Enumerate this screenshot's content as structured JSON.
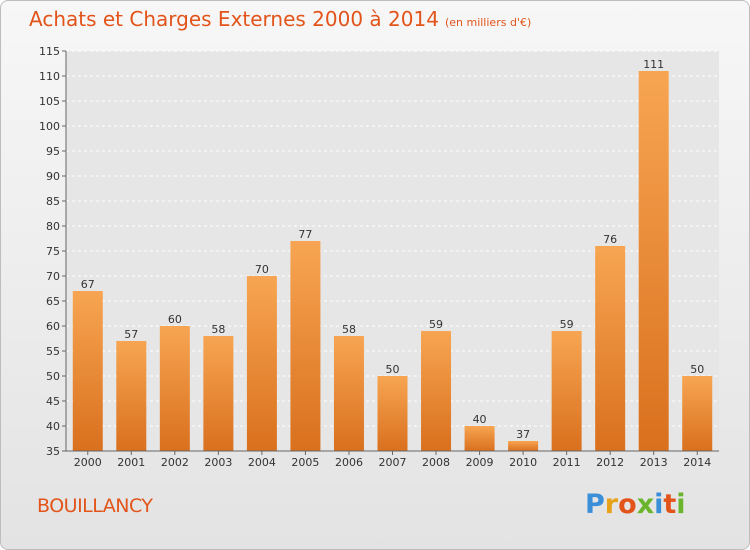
{
  "header": {
    "title": "Achats et Charges Externes 2000 à 2014",
    "subtitle": "(en milliers d'€)"
  },
  "footer": {
    "commune": "BOUILLANCY",
    "logo_letters": [
      "P",
      "r",
      "o",
      "x",
      "i",
      "t",
      "i"
    ],
    "logo_colors": [
      "#3a8fd8",
      "#e8a21a",
      "#e2541a",
      "#6bb52c",
      "#3a8fd8",
      "#e2541a",
      "#6bb52c"
    ]
  },
  "chart_data": {
    "type": "bar",
    "categories": [
      "2000",
      "2001",
      "2002",
      "2003",
      "2004",
      "2005",
      "2006",
      "2007",
      "2008",
      "2009",
      "2010",
      "2011",
      "2012",
      "2013",
      "2014"
    ],
    "values": [
      67,
      57,
      60,
      58,
      70,
      77,
      58,
      50,
      59,
      40,
      37,
      59,
      76,
      111,
      50
    ],
    "title": "Achats et Charges Externes 2000 à 2014",
    "xlabel": "",
    "ylabel": "",
    "ylim": [
      35,
      115
    ],
    "yticks": [
      35,
      40,
      45,
      50,
      55,
      60,
      65,
      70,
      75,
      80,
      85,
      90,
      95,
      100,
      105,
      110,
      115
    ],
    "grid": true,
    "bar_color_top": "#f7a552",
    "bar_color_bottom": "#d9701e",
    "plot_background": "#e6e6e6"
  }
}
